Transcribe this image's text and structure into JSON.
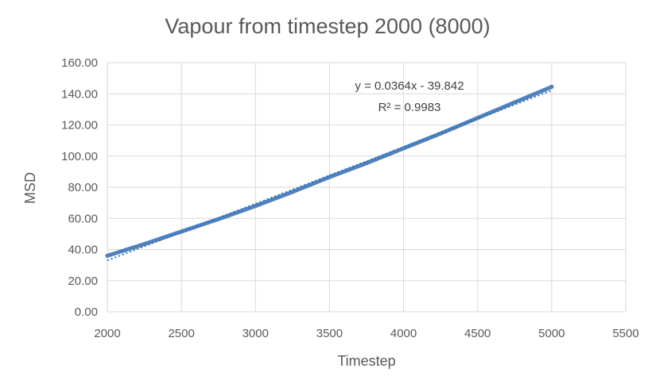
{
  "chart_data": {
    "type": "scatter",
    "title": "Vapour from timestep 2000 (8000)",
    "xlabel": "Timestep",
    "ylabel": "MSD",
    "xlim": [
      2000,
      5500
    ],
    "ylim": [
      0,
      160
    ],
    "xticks": [
      "2000",
      "2500",
      "3000",
      "3500",
      "4000",
      "4500",
      "5000",
      "5500"
    ],
    "yticks": [
      "0.00",
      "20.00",
      "40.00",
      "60.00",
      "80.00",
      "100.00",
      "120.00",
      "140.00",
      "160.00"
    ],
    "grid": true,
    "series": [
      {
        "color": "#4f81bd",
        "x": [
          2000,
          2250,
          2500,
          2750,
          3000,
          3250,
          3500,
          3750,
          4000,
          4250,
          4500,
          4750,
          5000
        ],
        "y": [
          36.0,
          43.5,
          51.5,
          59.5,
          68.0,
          77.0,
          86.5,
          95.5,
          105.0,
          114.5,
          124.5,
          134.5,
          144.5
        ]
      }
    ],
    "trendline": {
      "type": "linear",
      "slope": 0.0364,
      "intercept": -39.842,
      "x_range": [
        2000,
        5000
      ],
      "color": "#2e75b6",
      "equation": "y = 0.0364x - 39.842",
      "r_squared": "R² = 0.9983"
    }
  }
}
